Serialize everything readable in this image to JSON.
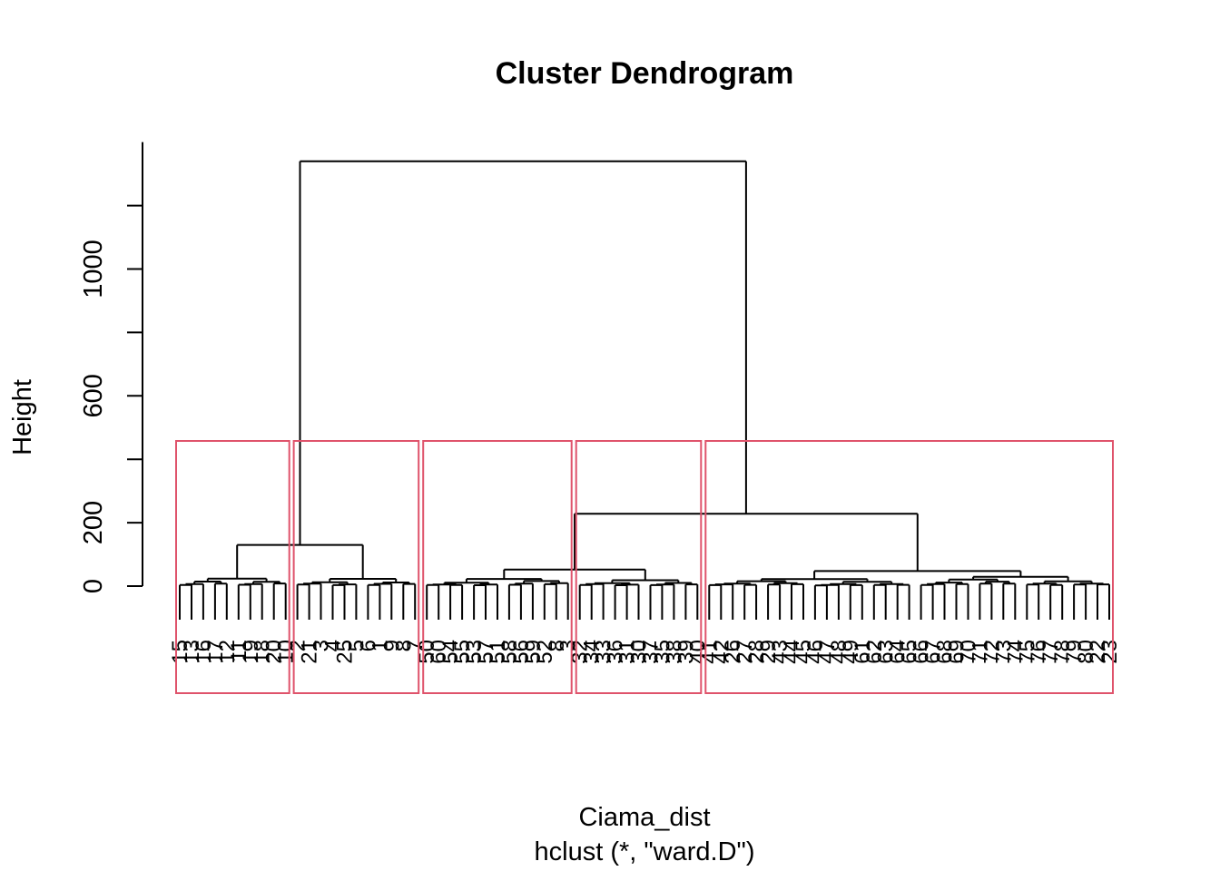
{
  "chart_data": {
    "type": "dendrogram",
    "title": "Cluster Dendrogram",
    "ylabel": "Height",
    "xlabel": "Ciama_dist",
    "sublabel": "hclust (*, \"ward.D\")",
    "ylim": [
      0,
      1350
    ],
    "yticks": [
      0,
      200,
      400,
      600,
      800,
      1000,
      1200
    ],
    "ytick_labels": [
      "0",
      "200",
      "",
      "600",
      "",
      "1000",
      ""
    ],
    "grid": false,
    "leaf_count": 80,
    "cluster_box_color": "#DF536B",
    "cluster_boxes": [
      {
        "from_leaf": 0,
        "to_leaf": 9
      },
      {
        "from_leaf": 10,
        "to_leaf": 20
      },
      {
        "from_leaf": 21,
        "to_leaf": 33
      },
      {
        "from_leaf": 34,
        "to_leaf": 44
      },
      {
        "from_leaf": 45,
        "to_leaf": 79
      }
    ],
    "merges": [
      {
        "height": 1340,
        "left": 0,
        "right": 1
      },
      {
        "height": 130,
        "left": 0,
        "right": 1
      },
      {
        "height": 228,
        "left": 2,
        "right": 3
      },
      {
        "height": 55,
        "left": 0,
        "right": 1
      },
      {
        "height": 55,
        "left": 1,
        "right": 2
      },
      {
        "height": 52,
        "left": 3,
        "right": 4
      },
      {
        "height": 118,
        "left": 4,
        "right": 5
      }
    ],
    "leaf_labels": [
      "15",
      "13",
      "16",
      "17",
      "12",
      "11",
      "19",
      "18",
      "20",
      "10",
      "2",
      "21",
      "3",
      "4",
      "25",
      "5",
      "6",
      "1",
      "9",
      "8",
      "7",
      "50",
      "60",
      "54",
      "55",
      "53",
      "57",
      "51",
      "58",
      "56",
      "59",
      "52",
      "8",
      "3",
      "32",
      "34",
      "33",
      "36",
      "31",
      "30",
      "37",
      "35",
      "38",
      "39",
      "40",
      "41",
      "42",
      "26",
      "27",
      "28",
      "29",
      "43",
      "44",
      "45",
      "46",
      "47",
      "48",
      "49",
      "61",
      "62",
      "63",
      "64",
      "65",
      "66",
      "67",
      "68",
      "69",
      "70",
      "71",
      "72",
      "73",
      "74",
      "75",
      "76",
      "77",
      "78",
      "79",
      "80",
      "22",
      "23"
    ]
  }
}
